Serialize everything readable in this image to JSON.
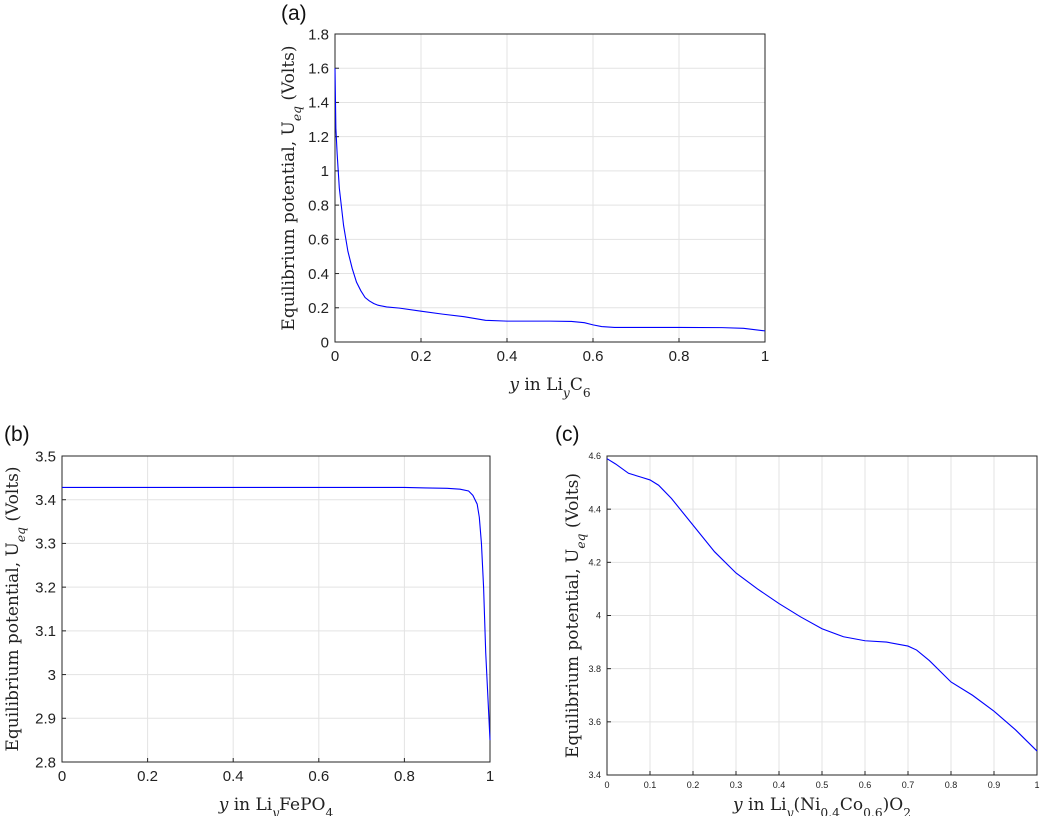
{
  "colors": {
    "series": "#0000ff",
    "grid": "#e3e3e3",
    "axis": "#262626"
  },
  "chart_data": [
    {
      "panel": "(a)",
      "type": "line",
      "xlabel": {
        "var": "y",
        "text": " in Li",
        "sub": "y",
        "rest": "C",
        "sub2": "6"
      },
      "ylabel": "Equilibrium potential, U_eq (Volts)",
      "xlim": [
        0,
        1
      ],
      "ylim": [
        0,
        1.8
      ],
      "xticks": [
        "0",
        "0.2",
        "0.4",
        "0.6",
        "0.8",
        "1"
      ],
      "yticks": [
        "0",
        "0.2",
        "0.4",
        "0.6",
        "0.8",
        "1",
        "1.2",
        "1.4",
        "1.6",
        "1.8"
      ],
      "grid": true,
      "series": [
        {
          "x": [
            0,
            0.002,
            0.005,
            0.01,
            0.02,
            0.03,
            0.04,
            0.05,
            0.06,
            0.07,
            0.08,
            0.09,
            0.1,
            0.12,
            0.15,
            0.2,
            0.25,
            0.3,
            0.35,
            0.4,
            0.45,
            0.5,
            0.55,
            0.58,
            0.6,
            0.62,
            0.65,
            0.7,
            0.8,
            0.9,
            0.95,
            1.0
          ],
          "y": [
            1.6,
            1.25,
            1.1,
            0.9,
            0.68,
            0.53,
            0.43,
            0.35,
            0.3,
            0.26,
            0.24,
            0.225,
            0.215,
            0.205,
            0.198,
            0.18,
            0.163,
            0.148,
            0.127,
            0.122,
            0.122,
            0.122,
            0.12,
            0.113,
            0.1,
            0.09,
            0.085,
            0.085,
            0.085,
            0.084,
            0.08,
            0.065
          ]
        }
      ]
    },
    {
      "panel": "(b)",
      "type": "line",
      "xlabel": {
        "var": "y",
        "text": " in Li",
        "sub": "y",
        "rest": "FePO",
        "sub2": "4"
      },
      "ylabel": "Equilibrium potential, U_eq (Volts)",
      "xlim": [
        0,
        1
      ],
      "ylim": [
        2.8,
        3.5
      ],
      "xticks": [
        "0",
        "0.2",
        "0.4",
        "0.6",
        "0.8",
        "1"
      ],
      "yticks": [
        "2.8",
        "2.9",
        "3",
        "3.1",
        "3.2",
        "3.3",
        "3.4",
        "3.5"
      ],
      "grid": true,
      "series": [
        {
          "x": [
            0,
            0.2,
            0.4,
            0.6,
            0.8,
            0.85,
            0.9,
            0.93,
            0.95,
            0.96,
            0.97,
            0.975,
            0.98,
            0.985,
            0.99,
            0.995,
            1.0
          ],
          "y": [
            3.428,
            3.428,
            3.428,
            3.428,
            3.428,
            3.427,
            3.426,
            3.424,
            3.42,
            3.41,
            3.39,
            3.36,
            3.3,
            3.2,
            3.05,
            2.95,
            2.85
          ]
        }
      ]
    },
    {
      "panel": "(c)",
      "type": "line",
      "xlabel": {
        "var": "y",
        "text": " in Li",
        "sub": "y",
        "rest": "(Ni",
        "sub2": "0.4",
        "rest2": "Co",
        "sub3": "0.6",
        "rest3": ")O",
        "sub4": "2"
      },
      "ylabel": "Equilibrium potential, U_eq (Volts)",
      "xlim": [
        0,
        1
      ],
      "ylim": [
        3.4,
        4.6
      ],
      "xticks": [
        "0",
        "0.1",
        "0.2",
        "0.3",
        "0.4",
        "0.5",
        "0.6",
        "0.7",
        "0.8",
        "0.9",
        "1"
      ],
      "yticks": [
        "3.4",
        "3.6",
        "3.8",
        "4",
        "4.2",
        "4.4",
        "4.6"
      ],
      "grid": true,
      "series": [
        {
          "x": [
            0,
            0.02,
            0.05,
            0.08,
            0.1,
            0.12,
            0.15,
            0.2,
            0.25,
            0.3,
            0.35,
            0.4,
            0.45,
            0.5,
            0.55,
            0.6,
            0.65,
            0.7,
            0.72,
            0.75,
            0.8,
            0.85,
            0.9,
            0.95,
            1.0
          ],
          "y": [
            4.59,
            4.57,
            4.535,
            4.52,
            4.51,
            4.49,
            4.44,
            4.34,
            4.24,
            4.16,
            4.1,
            4.045,
            3.995,
            3.95,
            3.92,
            3.905,
            3.9,
            3.885,
            3.87,
            3.83,
            3.75,
            3.7,
            3.64,
            3.57,
            3.49
          ]
        }
      ]
    }
  ]
}
